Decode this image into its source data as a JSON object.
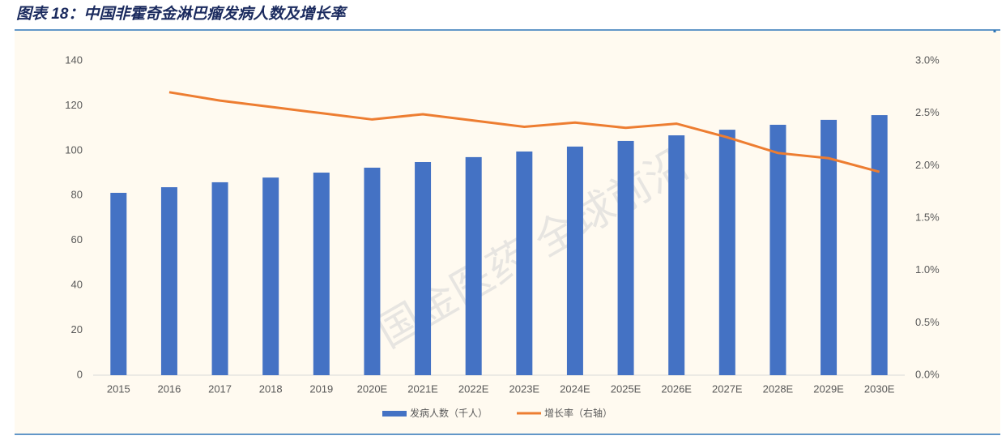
{
  "chart_data": {
    "type": "bar-line",
    "title": "图表 18：中国非霍奇金淋巴瘤发病人数及增长率",
    "watermark": "国金医药 全球前沿",
    "categories": [
      "2015",
      "2016",
      "2017",
      "2018",
      "2019",
      "2020E",
      "2021E",
      "2022E",
      "2023E",
      "2024E",
      "2025E",
      "2026E",
      "2027E",
      "2028E",
      "2029E",
      "2030E"
    ],
    "series": [
      {
        "name": "发病人数（千人）",
        "type": "bar",
        "color": "#4472c4",
        "values": [
          81.2,
          83.7,
          85.9,
          88.0,
          90.2,
          92.4,
          94.9,
          97.1,
          99.6,
          101.8,
          104.3,
          106.8,
          109.3,
          111.5,
          113.7,
          115.8
        ]
      },
      {
        "name": "增长率（右轴）",
        "type": "line",
        "axis": "y2",
        "color": "#ed7d31",
        "values": [
          null,
          2.7,
          2.62,
          2.56,
          2.5,
          2.44,
          2.49,
          2.43,
          2.37,
          2.41,
          2.36,
          2.4,
          2.27,
          2.12,
          2.07,
          1.94
        ]
      }
    ],
    "ylim": [
      0,
      140
    ],
    "yticks": [
      0,
      20,
      40,
      60,
      80,
      100,
      120,
      140
    ],
    "y2lim": [
      0,
      3
    ],
    "y2ticks": [
      {
        "value": 0,
        "label": "0.0%"
      },
      {
        "value": 0.5,
        "label": "0.5%"
      },
      {
        "value": 1,
        "label": "1.0%"
      },
      {
        "value": 1.5,
        "label": "1.5%"
      },
      {
        "value": 2,
        "label": "2.0%"
      },
      {
        "value": 2.5,
        "label": "2.5%"
      },
      {
        "value": 3,
        "label": "3.0%"
      }
    ],
    "legend": "bottom"
  }
}
